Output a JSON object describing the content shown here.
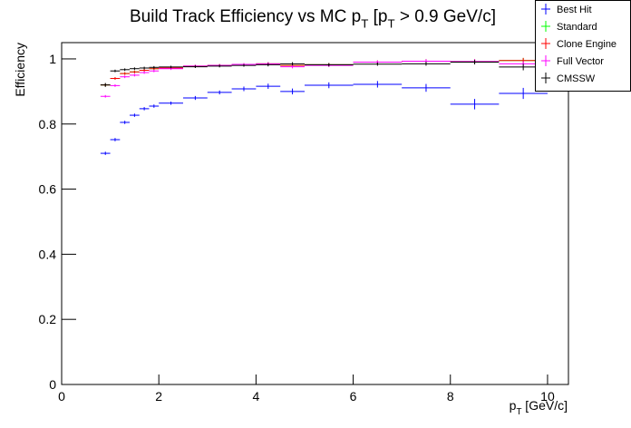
{
  "chart_data": {
    "type": "errorbar",
    "title": [
      "Build Track Efficiency vs MC p",
      "T",
      " [p",
      "T",
      " > 0.9 GeV/c]"
    ],
    "x_label": [
      "p",
      "T",
      " [GeV/c]"
    ],
    "y_label": "Efficiency",
    "x": [
      0.9,
      1.1,
      1.3,
      1.5,
      1.7,
      1.9,
      2.25,
      2.75,
      3.25,
      3.75,
      4.25,
      4.75,
      5.5,
      6.5,
      7.5,
      8.5,
      9.5
    ],
    "xerr": [
      0.1,
      0.1,
      0.1,
      0.1,
      0.1,
      0.1,
      0.25,
      0.25,
      0.25,
      0.25,
      0.25,
      0.25,
      0.5,
      0.5,
      0.5,
      0.5,
      0.5
    ],
    "xlim": [
      0,
      10.43
    ],
    "ylim": [
      0,
      1.05
    ],
    "xticks": [
      0,
      2,
      4,
      6,
      8,
      10
    ],
    "yticks": [
      0,
      0.2,
      0.4,
      0.6,
      0.8,
      1
    ],
    "legend": "top-right",
    "series": [
      {
        "name": "Best Hit",
        "color": "#0000ff",
        "values": [
          0.71,
          0.752,
          0.805,
          0.827,
          0.847,
          0.855,
          0.864,
          0.88,
          0.897,
          0.908,
          0.916,
          0.9,
          0.919,
          0.922,
          0.911,
          0.861,
          0.894
        ],
        "errors": [
          0.005,
          0.005,
          0.005,
          0.005,
          0.005,
          0.005,
          0.005,
          0.006,
          0.006,
          0.007,
          0.008,
          0.009,
          0.009,
          0.01,
          0.012,
          0.016,
          0.017
        ]
      },
      {
        "name": "Standard",
        "color": "#00ff00",
        "values": [
          0.92,
          0.94,
          0.955,
          0.96,
          0.965,
          0.97,
          0.972,
          0.978,
          0.98,
          0.983,
          0.985,
          0.98,
          0.982,
          0.99,
          0.993,
          0.992,
          0.995
        ],
        "errors": [
          0.004,
          0.004,
          0.004,
          0.004,
          0.004,
          0.004,
          0.004,
          0.004,
          0.004,
          0.004,
          0.005,
          0.005,
          0.005,
          0.005,
          0.006,
          0.007,
          0.008
        ]
      },
      {
        "name": "Clone Engine",
        "color": "#ff0000",
        "values": [
          0.92,
          0.94,
          0.955,
          0.96,
          0.965,
          0.97,
          0.972,
          0.978,
          0.98,
          0.983,
          0.985,
          0.98,
          0.982,
          0.99,
          0.993,
          0.992,
          0.995
        ],
        "errors": [
          0.004,
          0.004,
          0.004,
          0.004,
          0.004,
          0.004,
          0.004,
          0.004,
          0.004,
          0.004,
          0.005,
          0.005,
          0.005,
          0.005,
          0.006,
          0.007,
          0.008
        ]
      },
      {
        "name": "Full Vector",
        "color": "#ff00ff",
        "values": [
          0.885,
          0.918,
          0.945,
          0.95,
          0.958,
          0.963,
          0.97,
          0.978,
          0.98,
          0.983,
          0.985,
          0.976,
          0.98,
          0.99,
          0.993,
          0.992,
          0.985
        ],
        "errors": [
          0.004,
          0.004,
          0.004,
          0.004,
          0.004,
          0.004,
          0.004,
          0.004,
          0.004,
          0.004,
          0.005,
          0.005,
          0.005,
          0.005,
          0.006,
          0.007,
          0.008
        ]
      },
      {
        "name": "CMSSW",
        "color": "#000000",
        "values": [
          0.92,
          0.963,
          0.967,
          0.97,
          0.972,
          0.974,
          0.975,
          0.976,
          0.978,
          0.98,
          0.982,
          0.985,
          0.982,
          0.984,
          0.985,
          0.99,
          0.975
        ],
        "errors": [
          0.006,
          0.004,
          0.004,
          0.004,
          0.004,
          0.004,
          0.004,
          0.004,
          0.004,
          0.004,
          0.005,
          0.005,
          0.005,
          0.005,
          0.006,
          0.007,
          0.01
        ]
      }
    ]
  }
}
